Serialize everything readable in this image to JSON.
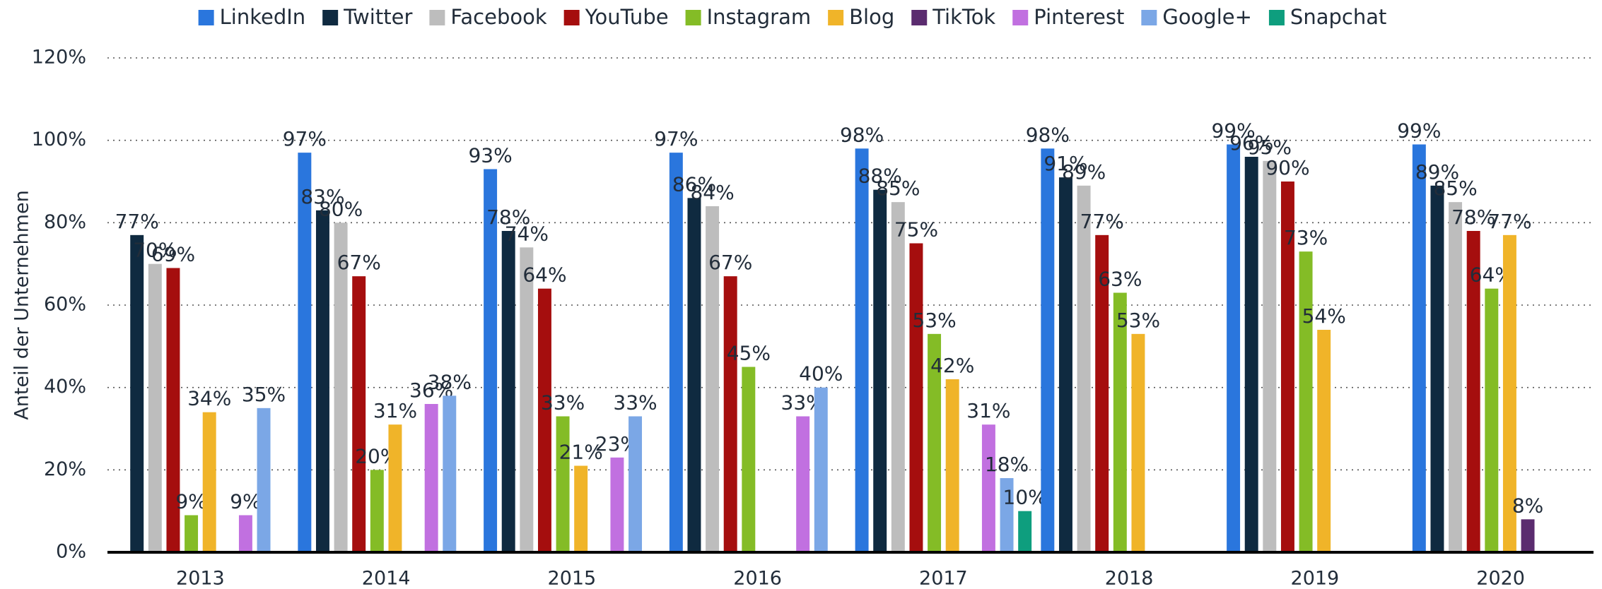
{
  "chart_data": {
    "type": "bar",
    "y_label": "Anteil der Unternehmen",
    "categories": [
      "2013",
      "2014",
      "2015",
      "2016",
      "2017",
      "2018",
      "2019",
      "2020"
    ],
    "series": [
      {
        "name": "LinkedIn",
        "color": "#2a76dd",
        "values": [
          null,
          97,
          93,
          97,
          98,
          98,
          99,
          99
        ],
        "value_labels": [
          null,
          "97%",
          "93%",
          "97%",
          "98%",
          "98%",
          "99%",
          "99%"
        ]
      },
      {
        "name": "Twitter",
        "color": "#0f2a40",
        "values": [
          77,
          83,
          78,
          86,
          88,
          91,
          96,
          89
        ],
        "value_labels": [
          "77%",
          "83%",
          "78%",
          "86%",
          "88%",
          "91%",
          "96%",
          "89%"
        ]
      },
      {
        "name": "Facebook",
        "color": "#bdbdbd",
        "values": [
          70,
          80,
          74,
          84,
          85,
          89,
          95,
          85
        ],
        "value_labels": [
          "70%",
          "80%",
          "74%",
          "84%",
          "85%",
          "89%",
          "95%",
          "85%"
        ]
      },
      {
        "name": "YouTube",
        "color": "#a50e0e",
        "values": [
          69,
          67,
          64,
          67,
          75,
          77,
          90,
          78
        ],
        "value_labels": [
          "69%",
          "67%",
          "64%",
          "67%",
          "75%",
          "77%",
          "90%",
          "78%"
        ]
      },
      {
        "name": "Instagram",
        "color": "#84bc26",
        "values": [
          9,
          20,
          33,
          45,
          53,
          63,
          73,
          64
        ],
        "value_labels": [
          "9%",
          "20%",
          "33%",
          "45%",
          "53%",
          "63%",
          "73%",
          "64%"
        ]
      },
      {
        "name": "Blog",
        "color": "#f0b429",
        "values": [
          34,
          31,
          21,
          null,
          42,
          53,
          54,
          77
        ],
        "value_labels": [
          "34%",
          "31%",
          "21%",
          null,
          "42%",
          "53%",
          "54%",
          "77%"
        ]
      },
      {
        "name": "TikTok",
        "color": "#5b2c6f",
        "values": [
          null,
          null,
          null,
          null,
          null,
          null,
          null,
          8
        ],
        "value_labels": [
          null,
          null,
          null,
          null,
          null,
          null,
          null,
          "8%"
        ]
      },
      {
        "name": "Pinterest",
        "color": "#c170e0",
        "values": [
          9,
          36,
          23,
          33,
          31,
          null,
          null,
          null
        ],
        "value_labels": [
          "9%",
          "36%",
          "23%",
          "33%",
          "31%",
          null,
          null,
          null
        ]
      },
      {
        "name": "Google+",
        "color": "#7ba7e6",
        "values": [
          35,
          38,
          33,
          40,
          18,
          null,
          null,
          null
        ],
        "value_labels": [
          "35%",
          "38%",
          "33%",
          "40%",
          "18%",
          null,
          null,
          null
        ]
      },
      {
        "name": "Snapchat",
        "color": "#0e9e7e",
        "values": [
          null,
          null,
          null,
          null,
          10,
          null,
          null,
          null
        ],
        "value_labels": [
          null,
          null,
          null,
          null,
          "10%",
          null,
          null,
          null
        ]
      }
    ],
    "ylim": [
      0,
      120
    ],
    "yticks": [
      {
        "value": 0,
        "label": "0%"
      },
      {
        "value": 20,
        "label": "20%"
      },
      {
        "value": 40,
        "label": "40%"
      },
      {
        "value": 60,
        "label": "60%"
      },
      {
        "value": 80,
        "label": "80%"
      },
      {
        "value": 100,
        "label": "100%"
      },
      {
        "value": 120,
        "label": "120%"
      }
    ],
    "grid": true,
    "legend": "top"
  }
}
